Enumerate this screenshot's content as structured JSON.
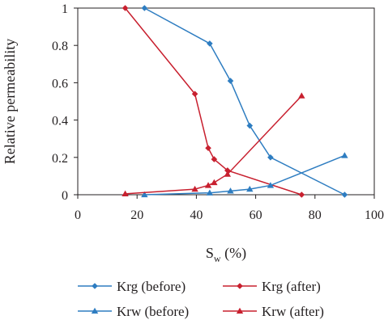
{
  "chart_data": {
    "type": "line",
    "xlabel_main": "S",
    "xlabel_sub": "w",
    "xlabel_unit": " (%)",
    "ylabel": "Relative permeability",
    "xlim": [
      0,
      100
    ],
    "ylim": [
      0,
      1
    ],
    "xticks": [
      0,
      20,
      40,
      60,
      80,
      100
    ],
    "xtick_labels": [
      "0",
      "20",
      "40",
      "60",
      "80",
      "100"
    ],
    "yticks": [
      0,
      0.2,
      0.4,
      0.6,
      0.8,
      1
    ],
    "ytick_labels": [
      "0",
      "0.2",
      "0.4",
      "0.6",
      "0.8",
      "1"
    ],
    "grid": false,
    "legend_position": "bottom",
    "series": [
      {
        "name": "Krg (before)",
        "color": "#2e7dc1",
        "marker": "diamond",
        "x": [
          22.5,
          44.5,
          51.5,
          58,
          65,
          90
        ],
        "y": [
          1.0,
          0.81,
          0.61,
          0.37,
          0.2,
          0.0
        ]
      },
      {
        "name": "Krg (after)",
        "color": "#c8202f",
        "marker": "diamond",
        "x": [
          16,
          39.5,
          44,
          46,
          50.5,
          75.5
        ],
        "y": [
          1.0,
          0.54,
          0.25,
          0.19,
          0.13,
          0.0
        ]
      },
      {
        "name": "Krw (before)",
        "color": "#2e7dc1",
        "marker": "triangle",
        "x": [
          22.5,
          44.5,
          51.5,
          58,
          65,
          90
        ],
        "y": [
          0.0,
          0.01,
          0.02,
          0.03,
          0.05,
          0.21
        ]
      },
      {
        "name": "Krw (after)",
        "color": "#c8202f",
        "marker": "triangle",
        "x": [
          16,
          39.5,
          44,
          46,
          50.5,
          75.5
        ],
        "y": [
          0.005,
          0.03,
          0.05,
          0.065,
          0.11,
          0.53
        ]
      }
    ]
  }
}
